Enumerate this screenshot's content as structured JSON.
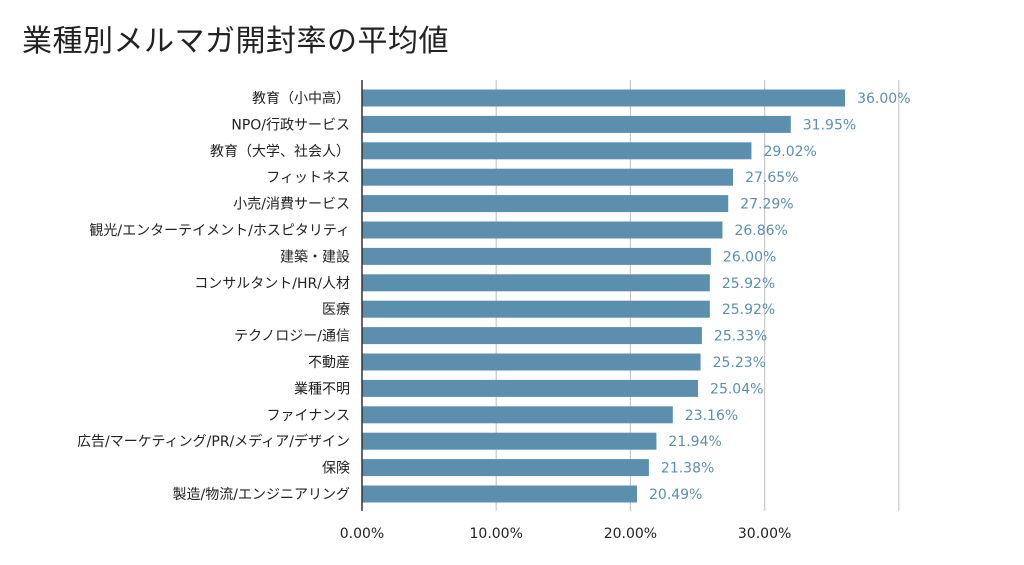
{
  "title": "業種別メルマガ開封率の平均値",
  "colors": {
    "bar": "#5b8fad",
    "value_label": "#5b8fad",
    "grid": "#c8c8c8",
    "axis": "#333333",
    "category_text": "#222222",
    "tick_text": "#222222"
  },
  "chart_data": {
    "type": "bar",
    "orientation": "horizontal",
    "categories": [
      "教育（小中高）",
      "NPO/行政サービス",
      "教育（大学、社会人）",
      "フィットネス",
      "小売/消費サービス",
      "観光/エンターテイメント/ホスピタリティ",
      "建築・建設",
      "コンサルタント/HR/人材",
      "医療",
      "テクノロジー/通信",
      "不動産",
      "業種不明",
      "ファイナンス",
      "広告/マーケティング/PR/メディア/デザイン",
      "保険",
      "製造/物流/エンジニアリング"
    ],
    "values": [
      36.0,
      31.95,
      29.02,
      27.65,
      27.29,
      26.86,
      26.0,
      25.92,
      25.92,
      25.33,
      25.23,
      25.04,
      23.16,
      21.94,
      21.38,
      20.49
    ],
    "value_labels": [
      "36.00%",
      "31.95%",
      "29.02%",
      "27.65%",
      "27.29%",
      "26.86%",
      "26.00%",
      "25.92%",
      "25.92%",
      "25.33%",
      "25.23%",
      "25.04%",
      "23.16%",
      "21.94%",
      "21.38%",
      "20.49%"
    ],
    "xticks": [
      0,
      10,
      20,
      30
    ],
    "xtick_labels": [
      "0.00%",
      "10.00%",
      "20.00%",
      "30.00%"
    ],
    "xlim": [
      0,
      40
    ],
    "grid": true,
    "legend": "none",
    "title": "業種別メルマガ開封率の平均値"
  }
}
